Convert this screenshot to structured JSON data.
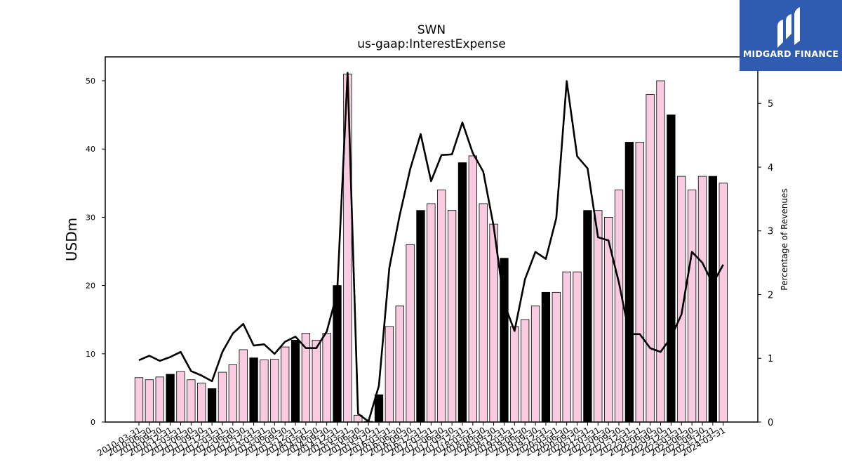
{
  "title": "SWN",
  "subtitle": "us-gaap:InterestExpense",
  "brand": {
    "name": "MIDGARD FINANCE"
  },
  "chart_data": {
    "type": "bar",
    "title": "SWN",
    "subtitle": "us-gaap:InterestExpense",
    "ylabel": "USDm",
    "y2label": "Percentage of Revenues",
    "ylim": [
      0,
      53.5
    ],
    "y2lim": [
      0,
      5.73
    ],
    "yticks": [
      0,
      10,
      20,
      30,
      40,
      50
    ],
    "y2ticks": [
      0,
      1,
      2,
      3,
      4,
      5
    ],
    "categories": [
      "2010-03-31",
      "2010-06-30",
      "2010-09-30",
      "2010-12-31",
      "2011-03-31",
      "2011-06-30",
      "2011-09-30",
      "2011-12-31",
      "2012-03-31",
      "2012-06-30",
      "2012-09-30",
      "2012-12-31",
      "2013-03-31",
      "2013-06-30",
      "2013-09-30",
      "2013-12-31",
      "2014-03-31",
      "2014-06-30",
      "2014-09-30",
      "2014-12-31",
      "2015-03-31",
      "2015-06-30",
      "2015-09-30",
      "2015-12-31",
      "2016-03-31",
      "2016-06-30",
      "2016-09-30",
      "2016-12-31",
      "2017-03-31",
      "2017-06-30",
      "2017-09-30",
      "2017-12-31",
      "2018-03-31",
      "2018-06-30",
      "2018-09-30",
      "2018-12-31",
      "2019-03-31",
      "2019-06-30",
      "2019-09-30",
      "2019-12-31",
      "2020-03-31",
      "2020-06-30",
      "2020-09-30",
      "2020-12-31",
      "2021-03-31",
      "2021-06-30",
      "2021-09-30",
      "2021-12-31",
      "2022-03-31",
      "2022-06-30",
      "2022-09-30",
      "2022-12-31",
      "2023-03-31",
      "2023-06-30",
      "2023-09-30",
      "2023-12-31",
      "2024-03-31"
    ],
    "series": [
      {
        "kind": "bar",
        "axis": "left",
        "values": [
          6.5,
          6.2,
          6.6,
          7.0,
          7.4,
          6.2,
          5.7,
          4.9,
          7.3,
          8.4,
          10.6,
          9.4,
          9.1,
          9.2,
          11.0,
          12.0,
          13.0,
          12.0,
          13.0,
          20.0,
          51.0,
          1.0,
          0.1,
          4.0,
          14.0,
          17.0,
          26.0,
          31.0,
          32.0,
          34.0,
          31.0,
          38.0,
          39.0,
          32.0,
          29.0,
          24.0,
          14.0,
          15.0,
          17.0,
          19.0,
          19.0,
          22.0,
          22.0,
          31.0,
          31.0,
          30.0,
          34.0,
          41.0,
          41.0,
          48.0,
          50.0,
          45.0,
          36.0,
          34.0,
          36.0,
          36.0,
          35.0
        ],
        "colors": [
          "#f9cbe1",
          "#f9cbe1",
          "#f9cbe1",
          "#000000",
          "#f9cbe1",
          "#f9cbe1",
          "#f9cbe1",
          "#000000",
          "#f9cbe1",
          "#f9cbe1",
          "#f9cbe1",
          "#000000",
          "#f9cbe1",
          "#f9cbe1",
          "#f9cbe1",
          "#000000",
          "#f9cbe1",
          "#f9cbe1",
          "#f9cbe1",
          "#000000",
          "#f9cbe1",
          "#f9cbe1",
          "#f9cbe1",
          "#000000",
          "#f9cbe1",
          "#f9cbe1",
          "#f9cbe1",
          "#000000",
          "#f9cbe1",
          "#f9cbe1",
          "#f9cbe1",
          "#000000",
          "#f9cbe1",
          "#f9cbe1",
          "#f9cbe1",
          "#000000",
          "#f9cbe1",
          "#f9cbe1",
          "#f9cbe1",
          "#000000",
          "#f9cbe1",
          "#f9cbe1",
          "#f9cbe1",
          "#000000",
          "#f9cbe1",
          "#f9cbe1",
          "#f9cbe1",
          "#000000",
          "#f9cbe1",
          "#f9cbe1",
          "#f9cbe1",
          "#000000",
          "#f9cbe1",
          "#f9cbe1",
          "#f9cbe1",
          "#000000",
          "#f9cbe1"
        ]
      },
      {
        "kind": "line",
        "axis": "right",
        "color": "#000000",
        "values": [
          0.97,
          1.04,
          0.96,
          1.02,
          1.1,
          0.8,
          0.73,
          0.64,
          1.1,
          1.39,
          1.54,
          1.2,
          1.22,
          1.07,
          1.26,
          1.34,
          1.16,
          1.16,
          1.42,
          2.03,
          5.48,
          0.13,
          0.01,
          0.57,
          2.42,
          3.25,
          3.97,
          4.52,
          3.78,
          4.19,
          4.2,
          4.7,
          4.22,
          3.93,
          3.07,
          1.86,
          1.43,
          2.24,
          2.67,
          2.56,
          3.2,
          5.35,
          4.17,
          3.98,
          2.9,
          2.85,
          2.19,
          1.38,
          1.38,
          1.16,
          1.1,
          1.33,
          1.69,
          2.67,
          2.5,
          2.17,
          2.47
        ]
      }
    ],
    "colors": {
      "bar_fill": "#f9cbe1",
      "bar_highlight": "#000000",
      "line": "#000000",
      "brand_bg": "#2f5bb0"
    }
  }
}
